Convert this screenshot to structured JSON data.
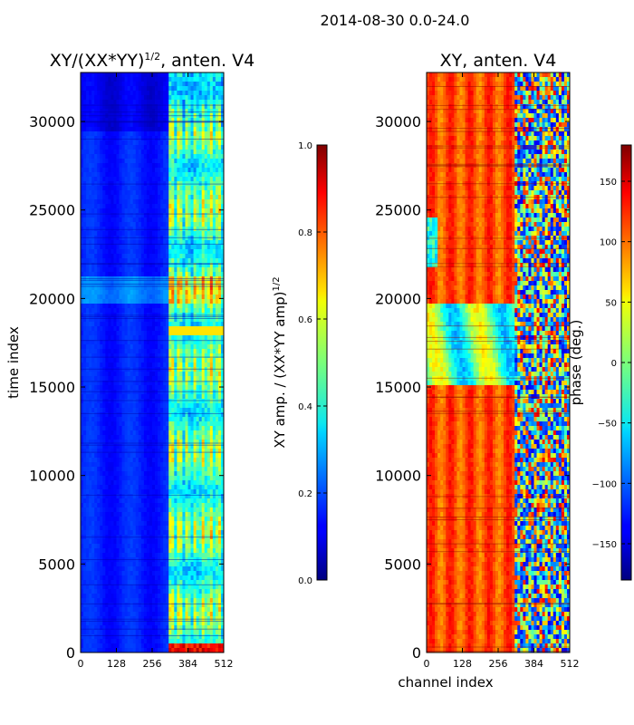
{
  "suptitle": "2014-08-30 0.0-24.0",
  "chart_data": [
    {
      "type": "heatmap",
      "title_main": "XY/(XX*YY)",
      "title_exp": "1/2",
      "title_tail": ", anten. V4",
      "xlabel": "",
      "ylabel": "time index",
      "xticks": [
        "0",
        "128",
        "256",
        "384",
        "512"
      ],
      "xtick_values": [
        0,
        128,
        256,
        384,
        512
      ],
      "yticks": [
        "0",
        "5000",
        "10000",
        "15000",
        "20000",
        "25000",
        "30000"
      ],
      "ytick_values": [
        0,
        5000,
        10000,
        15000,
        20000,
        25000,
        30000
      ],
      "xlim": [
        0,
        512
      ],
      "ylim": [
        0,
        32768
      ],
      "colormap": "jet",
      "colorbar": {
        "label_main": "XY amp. / (XX*YY amp)",
        "label_exp": "1/2",
        "range": [
          0.0,
          1.0
        ],
        "ticks": [
          "0.0",
          "0.2",
          "0.4",
          "0.6",
          "0.8",
          "1.0"
        ],
        "tick_values": [
          0.0,
          0.2,
          0.4,
          0.6,
          0.8,
          1.0
        ]
      }
    },
    {
      "type": "heatmap",
      "title": "XY, anten. V4",
      "xlabel": "channel index",
      "ylabel": "",
      "xticks": [
        "0",
        "128",
        "256",
        "384",
        "512"
      ],
      "xtick_values": [
        0,
        128,
        256,
        384,
        512
      ],
      "yticks": [
        "0",
        "5000",
        "10000",
        "15000",
        "20000",
        "25000",
        "30000"
      ],
      "ytick_values": [
        0,
        5000,
        10000,
        15000,
        20000,
        25000,
        30000
      ],
      "xlim": [
        0,
        512
      ],
      "ylim": [
        0,
        32768
      ],
      "colormap": "jet",
      "colorbar": {
        "label": "phase (deg.)",
        "range": [
          -180,
          180
        ],
        "ticks": [
          "−150",
          "−100",
          "−50",
          "0",
          "50",
          "100",
          "150"
        ],
        "tick_values": [
          -150,
          -100,
          -50,
          0,
          50,
          100,
          150
        ]
      }
    }
  ]
}
